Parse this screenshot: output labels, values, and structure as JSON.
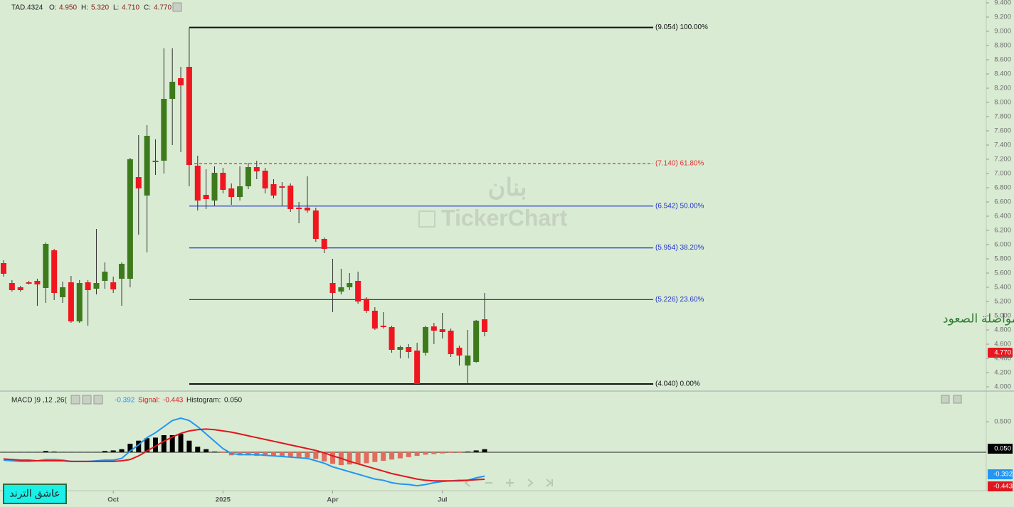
{
  "header": {
    "symbol": "TAD.4324",
    "o_label": "O:",
    "o": "4.950",
    "h_label": "H:",
    "h": "5.320",
    "l_label": "L:",
    "l": "4.710",
    "c_label": "C:",
    "c": "4.770"
  },
  "watermark": {
    "arabic": "بنان",
    "brand": "TickerChart"
  },
  "annotation": "اغلاق اسبوعي أعلى هذه النقطة مواصلة الصعود",
  "badge": "عاشق الترند",
  "macd_header": {
    "title": "MACD )9 ,12 ,26(",
    "macd": "-0.392",
    "signal_label": "Signal:",
    "signal": "-0.443",
    "histogram_label": "Histogram:",
    "histogram": "0.050"
  },
  "chart_data": [
    {
      "type": "candlestick",
      "categories": [
        null,
        null,
        null,
        null,
        null,
        null,
        null,
        null,
        null,
        null,
        null,
        null,
        null,
        null,
        null,
        null,
        null,
        null,
        null,
        null,
        null,
        null,
        null,
        null,
        null,
        null,
        null,
        null,
        null,
        null,
        null,
        null,
        null,
        null,
        null,
        null,
        null,
        null,
        null,
        null,
        null,
        null,
        null,
        null,
        null,
        null,
        null,
        null,
        null,
        null,
        null,
        null,
        null,
        null,
        null,
        null,
        null,
        null
      ],
      "open": [
        5.74,
        5.46,
        5.4,
        5.47,
        5.49,
        5.39,
        5.92,
        5.26,
        5.47,
        4.92,
        5.47,
        5.38,
        5.49,
        5.47,
        5.52,
        5.52,
        6.95,
        6.69,
        7.16,
        7.18,
        8.05,
        8.34,
        8.5,
        7.11,
        6.7,
        6.62,
        7.01,
        6.79,
        6.67,
        6.82,
        7.09,
        7.04,
        6.85,
        6.82,
        6.83,
        6.52,
        6.52,
        6.48,
        6.08,
        5.46,
        5.34,
        5.4,
        5.49,
        5.24,
        5.07,
        4.86,
        4.84,
        4.52,
        4.56,
        4.51,
        4.48,
        4.85,
        4.81,
        4.79,
        4.55,
        4.3,
        4.35,
        4.95
      ],
      "high": [
        5.78,
        5.5,
        5.42,
        5.49,
        5.52,
        6.03,
        5.94,
        5.48,
        5.56,
        5.5,
        5.5,
        6.22,
        5.75,
        5.55,
        5.75,
        7.22,
        7.54,
        7.68,
        7.48,
        8.76,
        8.76,
        8.5,
        9.05,
        7.25,
        7.06,
        7.1,
        7.08,
        6.86,
        7.1,
        7.15,
        7.18,
        7.08,
        6.92,
        6.88,
        6.86,
        6.6,
        6.96,
        6.52,
        6.1,
        5.8,
        5.66,
        5.6,
        5.62,
        5.26,
        5.12,
        5.05,
        4.86,
        4.58,
        4.6,
        4.62,
        4.86,
        4.9,
        5.04,
        4.82,
        4.58,
        4.8,
        4.94,
        5.32
      ],
      "low": [
        5.55,
        5.34,
        5.34,
        5.44,
        5.14,
        5.18,
        5.22,
        5.18,
        4.9,
        4.9,
        4.86,
        5.3,
        5.38,
        5.32,
        5.14,
        5.4,
        6.14,
        5.89,
        6.98,
        7.0,
        7.4,
        7.3,
        6.82,
        6.48,
        6.5,
        6.55,
        6.72,
        6.56,
        6.62,
        6.78,
        6.92,
        6.72,
        6.65,
        6.55,
        6.46,
        6.3,
        6.45,
        6.04,
        5.88,
        5.05,
        5.3,
        5.36,
        5.17,
        5.04,
        4.8,
        4.82,
        4.48,
        4.4,
        4.4,
        4.04,
        4.44,
        4.6,
        4.68,
        4.42,
        4.3,
        4.04,
        4.34,
        4.71
      ],
      "close": [
        5.59,
        5.36,
        5.36,
        5.45,
        5.44,
        6.01,
        5.32,
        5.4,
        4.92,
        5.46,
        5.36,
        5.46,
        5.62,
        5.37,
        5.73,
        7.2,
        6.79,
        7.53,
        7.18,
        8.05,
        8.29,
        8.24,
        7.12,
        6.62,
        6.64,
        7.01,
        6.77,
        6.67,
        6.82,
        7.09,
        7.03,
        6.79,
        6.69,
        6.8,
        6.5,
        6.5,
        6.48,
        6.08,
        5.94,
        5.32,
        5.4,
        5.46,
        5.2,
        5.07,
        4.82,
        4.84,
        4.52,
        4.56,
        4.49,
        4.04,
        4.84,
        4.79,
        4.77,
        4.46,
        4.44,
        4.44,
        4.93,
        4.77
      ],
      "up_color": "#3d7a1c",
      "down_color": "#f01620",
      "ylim": [
        3.94,
        9.44
      ],
      "yticks": [
        {
          "value": 4,
          "label": "4.000"
        },
        {
          "value": 4.2,
          "label": "4.200"
        },
        {
          "value": 4.4,
          "label": "4.400"
        },
        {
          "value": 4.6,
          "label": "4.600"
        },
        {
          "value": 4.8,
          "label": "4.800"
        },
        {
          "value": 5,
          "label": "5.000"
        },
        {
          "value": 5.2,
          "label": "5.200"
        },
        {
          "value": 5.4,
          "label": "5.400"
        },
        {
          "value": 5.6,
          "label": "5.600"
        },
        {
          "value": 5.8,
          "label": "5.800"
        },
        {
          "value": 6,
          "label": "6.000"
        },
        {
          "value": 6.2,
          "label": "6.200"
        },
        {
          "value": 6.4,
          "label": "6.400"
        },
        {
          "value": 6.6,
          "label": "6.600"
        },
        {
          "value": 6.8,
          "label": "6.800"
        },
        {
          "value": 7,
          "label": "7.000"
        },
        {
          "value": 7.2,
          "label": "7.200"
        },
        {
          "value": 7.4,
          "label": "7.400"
        },
        {
          "value": 7.6,
          "label": "7.600"
        },
        {
          "value": 7.8,
          "label": "7.800"
        },
        {
          "value": 8,
          "label": "8.000"
        },
        {
          "value": 8.2,
          "label": "8.200"
        },
        {
          "value": 8.4,
          "label": "8.400"
        },
        {
          "value": 8.6,
          "label": "8.600"
        },
        {
          "value": 8.8,
          "label": "8.800"
        },
        {
          "value": 9,
          "label": "9.000"
        },
        {
          "value": 9.2,
          "label": "9.200"
        },
        {
          "value": 9.4,
          "label": "9.400"
        }
      ],
      "xticks": [
        {
          "value": 13,
          "label": "Oct"
        },
        {
          "value": 26,
          "label": "2025"
        },
        {
          "value": 39,
          "label": "Apr"
        },
        {
          "value": 52,
          "label": "Jul"
        }
      ],
      "fib_levels": [
        {
          "value": 9.054,
          "label": "(9.054) 100.00%",
          "color": "#111111",
          "style": "solid"
        },
        {
          "value": 7.14,
          "label": "(7.140) 61.80%",
          "color": "#e03030",
          "style": "dashed"
        },
        {
          "value": 6.542,
          "label": "(6.542) 50.00%",
          "color": "#2030c8",
          "style": "solid"
        },
        {
          "value": 5.954,
          "label": "(5.954) 38.20%",
          "color": "#2030c8",
          "style": "solid"
        },
        {
          "value": 5.226,
          "label": "(5.226) 23.60%",
          "color": "#2030c8",
          "style": "solid"
        },
        {
          "value": 4.04,
          "label": "(4.040) 0.00%",
          "color": "#111111",
          "style": "solid"
        }
      ]
    },
    {
      "type": "macd",
      "series": [
        {
          "color": "#2196f3",
          "values": [
            -0.13,
            -0.14,
            -0.15,
            -0.15,
            -0.14,
            -0.12,
            -0.12,
            -0.13,
            -0.15,
            -0.15,
            -0.15,
            -0.14,
            -0.13,
            -0.13,
            -0.1,
            0.02,
            0.12,
            0.24,
            0.32,
            0.42,
            0.52,
            0.56,
            0.52,
            0.42,
            0.3,
            0.18,
            0.06,
            -0.02,
            -0.04,
            -0.04,
            -0.04,
            -0.05,
            -0.06,
            -0.07,
            -0.08,
            -0.09,
            -0.1,
            -0.14,
            -0.18,
            -0.24,
            -0.28,
            -0.32,
            -0.36,
            -0.4,
            -0.44,
            -0.46,
            -0.5,
            -0.52,
            -0.53,
            -0.55,
            -0.53,
            -0.5,
            -0.48,
            -0.47,
            -0.46,
            -0.46,
            -0.42,
            -0.392
          ]
        },
        {
          "color": "#e0161e",
          "values": [
            -0.11,
            -0.12,
            -0.13,
            -0.13,
            -0.14,
            -0.14,
            -0.14,
            -0.14,
            -0.15,
            -0.15,
            -0.15,
            -0.15,
            -0.15,
            -0.15,
            -0.14,
            -0.12,
            -0.06,
            0.02,
            0.1,
            0.18,
            0.25,
            0.31,
            0.35,
            0.37,
            0.38,
            0.37,
            0.35,
            0.33,
            0.3,
            0.27,
            0.24,
            0.21,
            0.18,
            0.15,
            0.12,
            0.09,
            0.06,
            0.03,
            -0.01,
            -0.06,
            -0.1,
            -0.15,
            -0.19,
            -0.23,
            -0.27,
            -0.31,
            -0.35,
            -0.38,
            -0.41,
            -0.44,
            -0.46,
            -0.47,
            -0.47,
            -0.47,
            -0.47,
            -0.46,
            -0.45,
            -0.443
          ]
        }
      ],
      "histogram": {
        "pos_color": "#000000",
        "neg_color": "#e36b5c",
        "values": [
          0.005,
          0.005,
          0.005,
          0.005,
          0.005,
          0.02,
          0.01,
          0.005,
          0.005,
          0.005,
          0.005,
          0.005,
          0.02,
          0.03,
          0.05,
          0.14,
          0.19,
          0.23,
          0.24,
          0.28,
          0.28,
          0.3,
          0.19,
          0.09,
          0.05,
          0.01,
          -0.01,
          -0.05,
          -0.05,
          -0.05,
          -0.06,
          -0.06,
          -0.07,
          -0.07,
          -0.08,
          -0.08,
          -0.09,
          -0.11,
          -0.15,
          -0.19,
          -0.21,
          -0.2,
          -0.19,
          -0.18,
          -0.16,
          -0.14,
          -0.12,
          -0.1,
          -0.08,
          -0.06,
          -0.04,
          -0.03,
          -0.02,
          -0.01,
          -0.01,
          0.01,
          0.03,
          0.05
        ]
      },
      "ylim": [
        -0.63,
        0.98
      ],
      "yticks": [
        {
          "value": 0.5,
          "label": "0.500"
        }
      ]
    }
  ]
}
